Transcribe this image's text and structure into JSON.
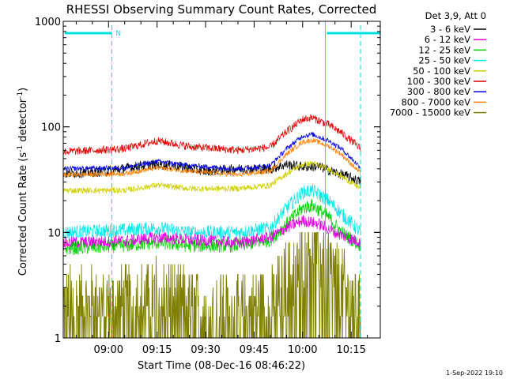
{
  "chart_data": {
    "type": "line",
    "title": "RHESSI Observing Summary Count Rates, Corrected",
    "xlabel": "Start Time (08-Dec-16 08:46:22)",
    "ylabel_main": "Corrected Count Rate (s",
    "ylabel_sup1": "-1",
    "ylabel_mid": " detector",
    "ylabel_sup2": "-1",
    "ylabel_end": ")",
    "yscale": "log",
    "ylim": [
      1,
      1000
    ],
    "xlim_min": [
      -14,
      84
    ],
    "x_ticks": [
      {
        "min": 0,
        "label": "09:00"
      },
      {
        "min": 15,
        "label": "09:15"
      },
      {
        "min": 30,
        "label": "09:30"
      },
      {
        "min": 45,
        "label": "09:45"
      },
      {
        "min": 60,
        "label": "10:00"
      },
      {
        "min": 75,
        "label": "10:15"
      }
    ],
    "y_ticks": [
      {
        "value": 1,
        "label": "1"
      },
      {
        "value": 10,
        "label": "10"
      },
      {
        "value": 100,
        "label": "100"
      },
      {
        "value": 1000,
        "label": "1000"
      }
    ],
    "legend_header": "Det 3,9, Att 0",
    "timestamp": "1-Sep-2022 19:10",
    "night_label": "N",
    "night_intervals_min": [
      [
        -14,
        1
      ],
      [
        67,
        84
      ]
    ],
    "series": [
      {
        "name": "3 - 6 keV",
        "color": "#000000",
        "noise": 0.05,
        "points": [
          [
            -14,
            36
          ],
          [
            0,
            38
          ],
          [
            10,
            43
          ],
          [
            15,
            44
          ],
          [
            20,
            43
          ],
          [
            30,
            38
          ],
          [
            40,
            40
          ],
          [
            50,
            40
          ],
          [
            55,
            44
          ],
          [
            60,
            42
          ],
          [
            65,
            42
          ],
          [
            70,
            37
          ],
          [
            75,
            33
          ],
          [
            78,
            30
          ]
        ]
      },
      {
        "name": "6 - 12 keV",
        "color": "#e000e0",
        "noise": 0.06,
        "points": [
          [
            -14,
            8
          ],
          [
            5,
            8.3
          ],
          [
            15,
            9
          ],
          [
            25,
            8.5
          ],
          [
            40,
            8
          ],
          [
            50,
            9
          ],
          [
            55,
            11
          ],
          [
            60,
            13
          ],
          [
            65,
            12
          ],
          [
            70,
            10
          ],
          [
            78,
            8
          ]
        ]
      },
      {
        "name": "12 - 25 keV",
        "color": "#00d000",
        "noise": 0.07,
        "points": [
          [
            -14,
            7
          ],
          [
            5,
            7.5
          ],
          [
            15,
            8
          ],
          [
            25,
            7.5
          ],
          [
            40,
            7.5
          ],
          [
            50,
            8.5
          ],
          [
            55,
            12
          ],
          [
            60,
            17
          ],
          [
            63,
            18
          ],
          [
            68,
            14
          ],
          [
            72,
            10
          ],
          [
            78,
            7.5
          ]
        ]
      },
      {
        "name": "25 - 50 keV",
        "color": "#00e8e8",
        "noise": 0.07,
        "points": [
          [
            -14,
            10
          ],
          [
            5,
            10.5
          ],
          [
            15,
            11
          ],
          [
            25,
            10
          ],
          [
            40,
            10
          ],
          [
            50,
            11
          ],
          [
            55,
            17
          ],
          [
            60,
            24
          ],
          [
            63,
            25
          ],
          [
            68,
            20
          ],
          [
            72,
            15
          ],
          [
            78,
            10
          ]
        ]
      },
      {
        "name": "50 - 100 keV",
        "color": "#d0d000",
        "noise": 0.03,
        "points": [
          [
            -14,
            25
          ],
          [
            5,
            25
          ],
          [
            15,
            28
          ],
          [
            25,
            26
          ],
          [
            40,
            26
          ],
          [
            50,
            28
          ],
          [
            55,
            36
          ],
          [
            60,
            44
          ],
          [
            63,
            45
          ],
          [
            68,
            40
          ],
          [
            72,
            34
          ],
          [
            78,
            26
          ]
        ]
      },
      {
        "name": "100 - 300 keV",
        "color": "#e00000",
        "noise": 0.04,
        "points": [
          [
            -14,
            58
          ],
          [
            5,
            62
          ],
          [
            15,
            74
          ],
          [
            25,
            65
          ],
          [
            40,
            60
          ],
          [
            50,
            64
          ],
          [
            55,
            90
          ],
          [
            60,
            118
          ],
          [
            63,
            122
          ],
          [
            68,
            105
          ],
          [
            72,
            88
          ],
          [
            78,
            62
          ]
        ]
      },
      {
        "name": "300 - 800 keV",
        "color": "#0000e0",
        "noise": 0.025,
        "points": [
          [
            -14,
            40
          ],
          [
            5,
            41
          ],
          [
            15,
            47
          ],
          [
            25,
            43
          ],
          [
            40,
            40
          ],
          [
            50,
            43
          ],
          [
            55,
            62
          ],
          [
            60,
            82
          ],
          [
            63,
            85
          ],
          [
            68,
            74
          ],
          [
            72,
            62
          ],
          [
            78,
            41
          ]
        ]
      },
      {
        "name": "800 - 7000 keV",
        "color": "#ff8000",
        "noise": 0.025,
        "points": [
          [
            -14,
            35
          ],
          [
            5,
            36
          ],
          [
            15,
            41
          ],
          [
            25,
            38
          ],
          [
            40,
            35
          ],
          [
            50,
            38
          ],
          [
            55,
            55
          ],
          [
            60,
            72
          ],
          [
            63,
            75
          ],
          [
            68,
            66
          ],
          [
            72,
            55
          ],
          [
            78,
            36
          ]
        ]
      },
      {
        "name": "7000 - 15000 keV",
        "color": "#808000",
        "noise": 0.2,
        "points": [
          [
            -14,
            2
          ],
          [
            5,
            2
          ],
          [
            15,
            2.5
          ],
          [
            25,
            2
          ],
          [
            40,
            1.7
          ],
          [
            50,
            2
          ],
          [
            55,
            3.5
          ],
          [
            60,
            6
          ],
          [
            63,
            8
          ],
          [
            68,
            5
          ],
          [
            72,
            3
          ],
          [
            78,
            1.6
          ]
        ]
      }
    ]
  }
}
